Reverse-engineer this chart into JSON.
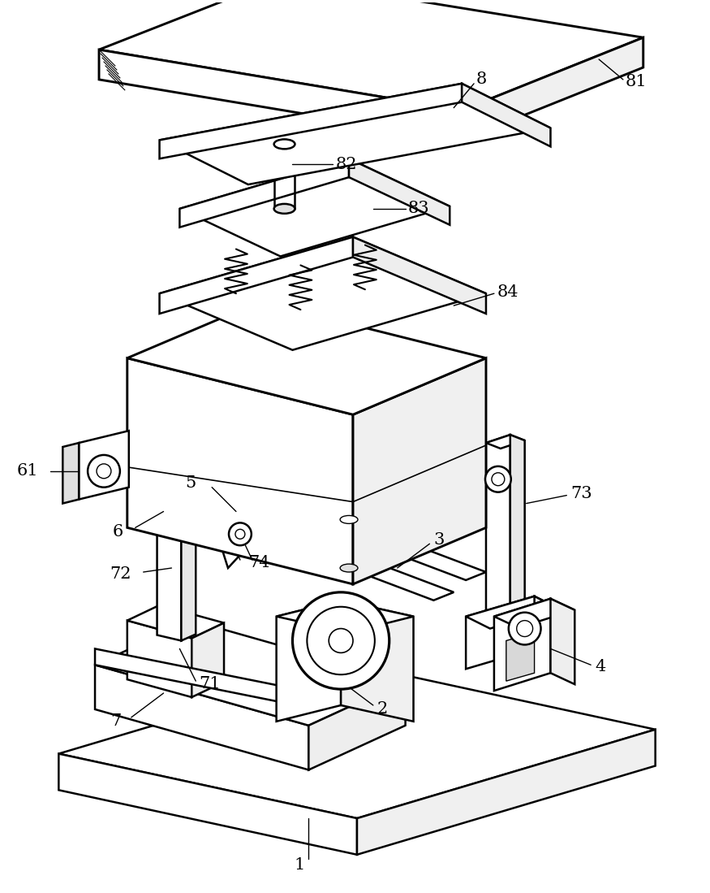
{
  "background_color": "#ffffff",
  "line_color": "#000000",
  "line_width": 1.8,
  "font_size": 15,
  "fig_width": 8.75,
  "fig_height": 10.99,
  "dpi": 100
}
